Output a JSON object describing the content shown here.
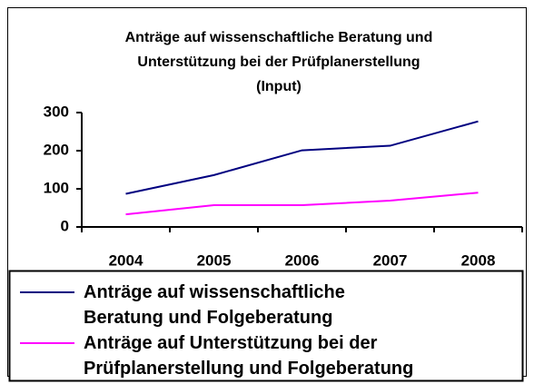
{
  "chart_data": {
    "type": "line",
    "title": "Anträge auf wissenschaftliche Beratung und\nUnterstützung bei der Prüfplanerstellung\n(Input)",
    "categories": [
      "2004",
      "2005",
      "2006",
      "2007",
      "2008"
    ],
    "series": [
      {
        "name": "Anträge auf wissenschaftliche\nBeratung und Folgeberatung",
        "color": "#000080",
        "values": [
          87,
          136,
          201,
          213,
          277
        ]
      },
      {
        "name": "Anträge auf Unterstützung bei der\nPrüfplanerstellung und Folgeberatung",
        "color": "#ff00ff",
        "values": [
          33,
          57,
          57,
          69,
          90
        ]
      }
    ],
    "ylim": [
      0,
      300
    ],
    "yticks": [
      0,
      100,
      200,
      300
    ],
    "grid": false
  }
}
